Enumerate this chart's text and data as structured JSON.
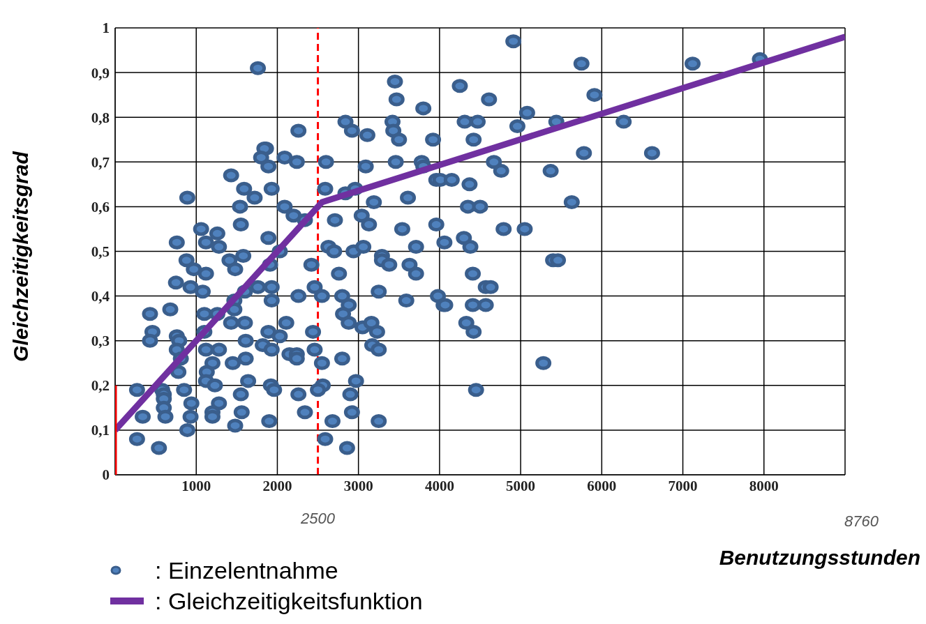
{
  "chart_data": {
    "type": "scatter",
    "xlabel": "Benutzungsstunden",
    "ylabel": "Gleichzeitigkeitsgrad",
    "xlim": [
      0,
      9000
    ],
    "xticks": [
      {
        "value": 0,
        "label": null
      },
      1000,
      2000,
      3000,
      4000,
      5000,
      6000,
      7000,
      8000,
      {
        "value": 9000,
        "label": null
      }
    ],
    "ylim": [
      0,
      1
    ],
    "yticks": [
      0,
      {
        "value": 0.1,
        "label": "0,1"
      },
      {
        "value": 0.2,
        "label": "0,2"
      },
      {
        "value": 0.3,
        "label": "0,3"
      },
      {
        "value": 0.4,
        "label": "0,4"
      },
      {
        "value": 0.5,
        "label": "0,5"
      },
      {
        "value": 0.6,
        "label": "0,6"
      },
      {
        "value": 0.7,
        "label": "0,7"
      },
      {
        "value": 0.8,
        "label": "0,8"
      },
      {
        "value": 0.9,
        "label": "0,9"
      },
      1
    ],
    "grid": true,
    "legend": "bottom left",
    "marker": "circle",
    "ref_lines": [
      {
        "axis": "x",
        "value": 2500,
        "label": "2500",
        "color": "#ff0000",
        "line_style": "dashed"
      }
    ],
    "annotations": [
      "8760"
    ],
    "series": [
      {
        "name": ": Einzelentnahme",
        "color": "#3a5e8c",
        "x": [
          880,
          970,
          1120,
          1410,
          1580,
          1480,
          1910,
          2030,
          750,
          930,
          1080,
          1760,
          1930,
          1600,
          2260,
          2420,
          2760,
          2460,
          2550,
          2800,
          2940,
          2880,
          430,
          680,
          1100,
          1260,
          1470,
          1470,
          1930,
          2810,
          2880,
          3050,
          1430,
          1600,
          2110,
          460,
          430,
          760,
          790,
          1100,
          1890,
          1820,
          2030,
          2440,
          760,
          810,
          780,
          1120,
          1280,
          1610,
          1930,
          2150,
          2240,
          2240,
          2460,
          2550,
          2800,
          1200,
          1130,
          1120,
          1230,
          1450,
          1610,
          1640,
          1920,
          1960,
          2560,
          2970,
          270,
          580,
          600,
          600,
          600,
          620,
          850,
          940,
          930,
          890,
          340,
          270,
          540,
          1280,
          1200,
          1200,
          1550,
          1560,
          1480,
          1900,
          2260,
          2340,
          2500,
          2680,
          2590,
          2860,
          2900,
          2920,
          1760,
          2840,
          2920,
          2260,
          1860,
          1840,
          1800,
          1890,
          2090,
          2240,
          2600,
          1430,
          1590,
          1930,
          1720,
          890,
          1540,
          2090,
          2590,
          2840,
          2960,
          2200,
          2340,
          2710,
          1550,
          1060,
          1260,
          1120,
          1280,
          760,
          1890,
          2630,
          2700,
          3060,
          4910,
          5750,
          5910,
          3450,
          3470,
          4250,
          4610,
          3800,
          5080,
          3420,
          3430,
          3500,
          3110,
          3920,
          4310,
          4470,
          4420,
          4960,
          5440,
          5780,
          3090,
          3460,
          3780,
          3800,
          4670,
          4760,
          5370,
          3190,
          3610,
          3960,
          4010,
          4150,
          4370,
          5630,
          4350,
          4500,
          3040,
          3130,
          3540,
          3960,
          4790,
          5050,
          4300,
          4380,
          4060,
          3710,
          3290,
          3290,
          3380,
          3630,
          3710,
          4410,
          4570,
          4630,
          5400,
          5460,
          3250,
          3590,
          3980,
          4050,
          4070,
          4410,
          4570,
          3160,
          3230,
          3170,
          3250,
          4330,
          4420,
          5280,
          4450,
          3250,
          7120,
          7950,
          6270,
          6620
        ],
        "values": [
          0.48,
          0.46,
          0.45,
          0.48,
          0.49,
          0.46,
          0.47,
          0.5,
          0.43,
          0.42,
          0.41,
          0.42,
          0.42,
          0.41,
          0.4,
          0.47,
          0.45,
          0.42,
          0.4,
          0.4,
          0.5,
          0.38,
          0.36,
          0.37,
          0.36,
          0.36,
          0.39,
          0.37,
          0.39,
          0.36,
          0.34,
          0.33,
          0.34,
          0.34,
          0.34,
          0.32,
          0.3,
          0.31,
          0.3,
          0.32,
          0.32,
          0.29,
          0.31,
          0.32,
          0.28,
          0.26,
          0.23,
          0.28,
          0.28,
          0.3,
          0.28,
          0.27,
          0.27,
          0.26,
          0.28,
          0.25,
          0.26,
          0.25,
          0.23,
          0.21,
          0.2,
          0.25,
          0.26,
          0.21,
          0.2,
          0.19,
          0.2,
          0.21,
          0.19,
          0.19,
          0.18,
          0.17,
          0.15,
          0.13,
          0.19,
          0.16,
          0.13,
          0.1,
          0.13,
          0.08,
          0.06,
          0.16,
          0.14,
          0.13,
          0.18,
          0.14,
          0.11,
          0.12,
          0.18,
          0.14,
          0.19,
          0.12,
          0.08,
          0.06,
          0.18,
          0.14,
          0.91,
          0.79,
          0.77,
          0.77,
          0.73,
          0.73,
          0.71,
          0.69,
          0.71,
          0.7,
          0.7,
          0.67,
          0.64,
          0.64,
          0.62,
          0.62,
          0.6,
          0.6,
          0.64,
          0.63,
          0.64,
          0.58,
          0.57,
          0.57,
          0.56,
          0.55,
          0.54,
          0.52,
          0.51,
          0.52,
          0.53,
          0.51,
          0.5,
          0.51,
          0.97,
          0.92,
          0.85,
          0.88,
          0.84,
          0.87,
          0.84,
          0.82,
          0.81,
          0.79,
          0.77,
          0.75,
          0.76,
          0.75,
          0.79,
          0.79,
          0.75,
          0.78,
          0.79,
          0.72,
          0.69,
          0.7,
          0.7,
          0.69,
          0.7,
          0.68,
          0.68,
          0.61,
          0.62,
          0.66,
          0.66,
          0.66,
          0.65,
          0.61,
          0.6,
          0.6,
          0.58,
          0.56,
          0.55,
          0.56,
          0.55,
          0.55,
          0.53,
          0.51,
          0.52,
          0.51,
          0.49,
          0.48,
          0.47,
          0.47,
          0.45,
          0.45,
          0.42,
          0.42,
          0.48,
          0.48,
          0.41,
          0.39,
          0.4,
          0.38,
          0.38,
          0.38,
          0.38,
          0.34,
          0.32,
          0.29,
          0.28,
          0.34,
          0.32,
          0.25,
          0.19,
          0.12,
          0.92,
          0.93,
          0.79,
          0.72
        ]
      },
      {
        "name": ": Gleichzeitigkeitsfunktion",
        "type": "line",
        "marker": "none",
        "color": "#7030a0",
        "x": [
          0,
          2500,
          2550,
          9000
        ],
        "values": [
          0.1,
          0.6,
          0.61,
          0.98
        ]
      },
      {
        "type": "line",
        "marker": "none",
        "color": "#ff0000",
        "x": [
          0,
          0
        ],
        "values": [
          0,
          0.2
        ]
      }
    ]
  }
}
